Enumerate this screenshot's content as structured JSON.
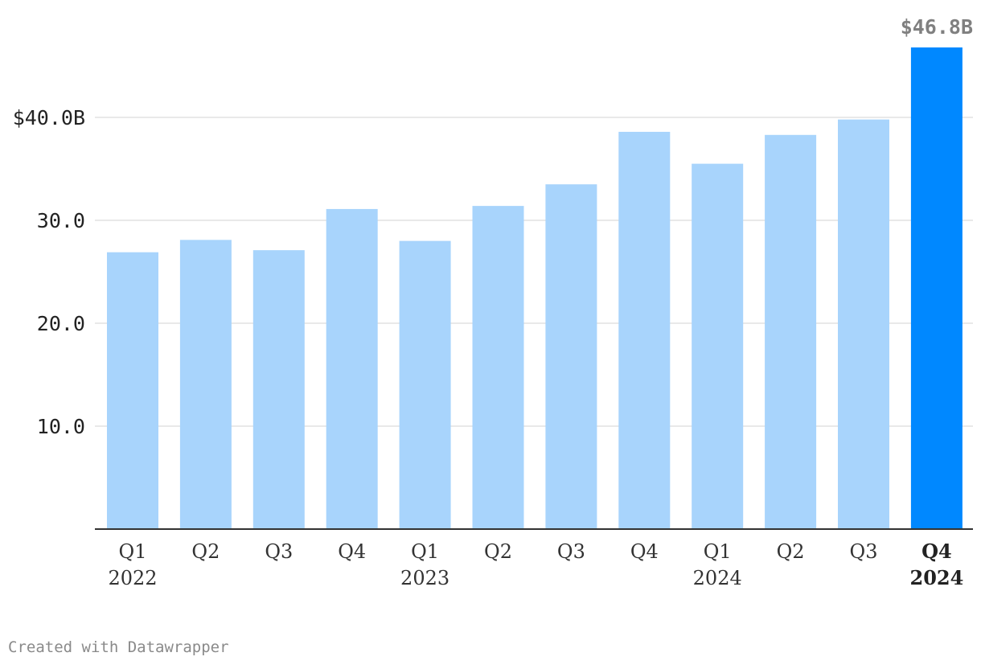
{
  "chart_data": {
    "type": "bar",
    "categories": [
      "Q1 2022",
      "Q2 2022",
      "Q3 2022",
      "Q4 2022",
      "Q1 2023",
      "Q2 2023",
      "Q3 2023",
      "Q4 2023",
      "Q1 2024",
      "Q2 2024",
      "Q3 2024",
      "Q4 2024"
    ],
    "x_tick_labels": [
      {
        "quarter": "Q1",
        "year": "2022"
      },
      {
        "quarter": "Q2",
        "year": ""
      },
      {
        "quarter": "Q3",
        "year": ""
      },
      {
        "quarter": "Q4",
        "year": ""
      },
      {
        "quarter": "Q1",
        "year": "2023"
      },
      {
        "quarter": "Q2",
        "year": ""
      },
      {
        "quarter": "Q3",
        "year": ""
      },
      {
        "quarter": "Q4",
        "year": ""
      },
      {
        "quarter": "Q1",
        "year": "2024"
      },
      {
        "quarter": "Q2",
        "year": ""
      },
      {
        "quarter": "Q3",
        "year": ""
      },
      {
        "quarter": "Q4",
        "year": "2024"
      }
    ],
    "values": [
      26.9,
      28.1,
      27.1,
      31.1,
      28.0,
      31.4,
      33.5,
      38.6,
      35.5,
      38.3,
      39.8,
      46.8
    ],
    "ylim": [
      0,
      46.8
    ],
    "y_ticks": [
      {
        "value": 10,
        "label": "10.0"
      },
      {
        "value": 20,
        "label": "20.0"
      },
      {
        "value": 30,
        "label": "30.0"
      },
      {
        "value": 40,
        "label": "$40.0B"
      }
    ],
    "highlight_index": 11,
    "value_labels": [
      {
        "index": 11,
        "text": "$46.8B"
      }
    ],
    "colors": {
      "bar": "#a8d4fc",
      "highlight": "#0088ff",
      "grid": "#e2e2e2",
      "axis": "#333333"
    },
    "grid": true,
    "title": "",
    "xlabel": "",
    "ylabel": ""
  },
  "footer": {
    "credit": "Created with Datawrapper"
  }
}
